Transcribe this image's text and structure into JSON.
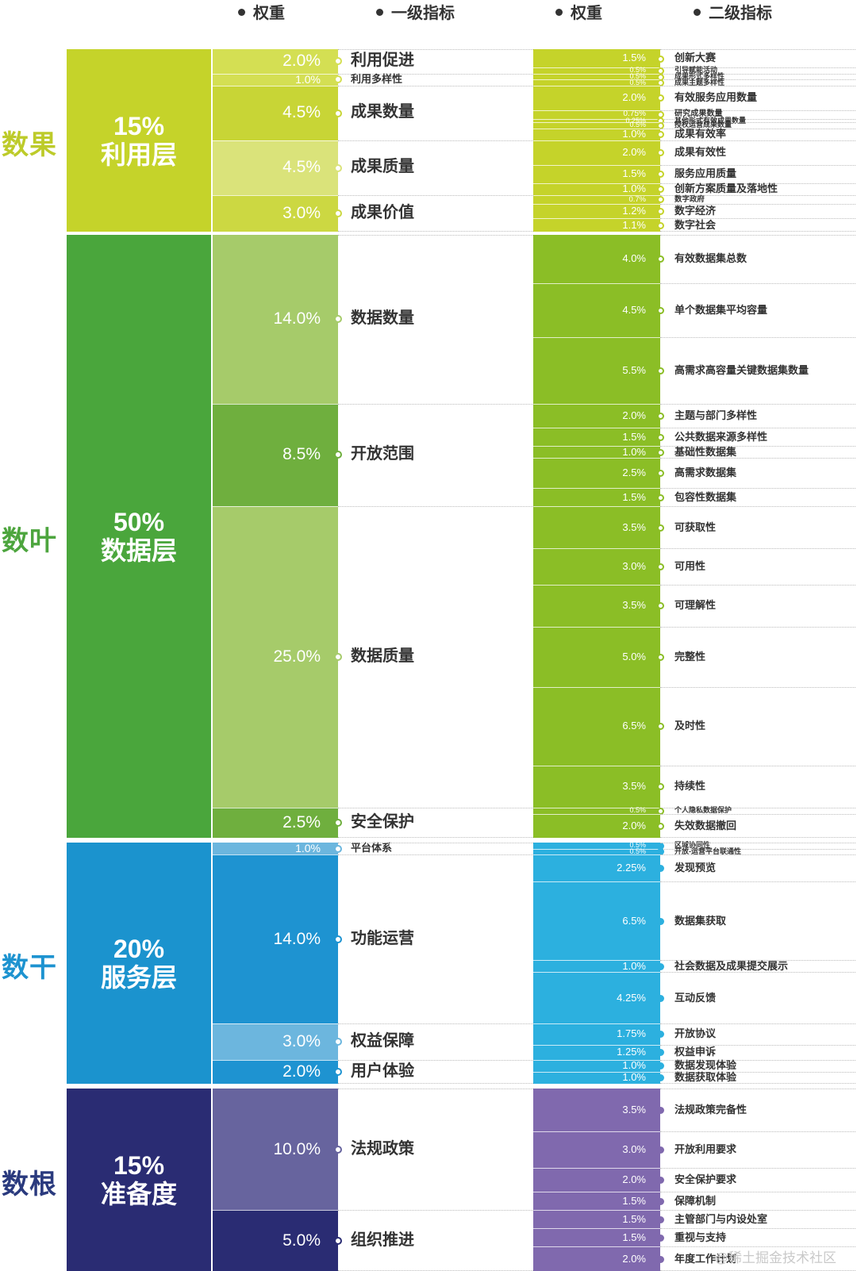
{
  "headers": {
    "weight": "权重",
    "level1": "一级指标",
    "level2": "二级指标"
  },
  "watermark": "@稀土掘金技术社区",
  "layers": [
    {
      "side": "数果",
      "pct": "15%",
      "name": "利用层",
      "color": "#C5D32A",
      "sideColor": "#BDCB2A",
      "l1": [
        {
          "label": "利用促进",
          "weight": "2.0%",
          "shade": "#D4DF53",
          "l2": [
            {
              "label": "创新大赛",
              "weight": "1.5%"
            },
            {
              "label": "引导赋能活动",
              "weight": "0.5%"
            }
          ]
        },
        {
          "label": "利用多样性",
          "weight": "1.0%",
          "shade": "#D4DF53",
          "l2": [
            {
              "label": "成果形式多样性",
              "weight": "0.5%"
            },
            {
              "label": "成果主题多样性",
              "weight": "0.5%"
            }
          ]
        },
        {
          "label": "成果数量",
          "weight": "4.5%",
          "shade": "#C8D536",
          "l2": [
            {
              "label": "有效服务应用数量",
              "weight": "2.0%"
            },
            {
              "label": "研究成果数量",
              "weight": "0.75%"
            },
            {
              "label": "其他形式有效成果数量",
              "weight": "0.25%"
            },
            {
              "label": "授权运营成果数量",
              "weight": "0.5%"
            },
            {
              "label": "成果有效率",
              "weight": "1.0%"
            }
          ]
        },
        {
          "label": "成果质量",
          "weight": "4.5%",
          "shade": "#DAE37A",
          "l2": [
            {
              "label": "成果有效性",
              "weight": "2.0%"
            },
            {
              "label": "服务应用质量",
              "weight": "1.5%"
            },
            {
              "label": "创新方案质量及落地性",
              "weight": "1.0%"
            }
          ]
        },
        {
          "label": "成果价值",
          "weight": "3.0%",
          "shade": "#CCD842",
          "l2": [
            {
              "label": "数字政府",
              "weight": "0.7%"
            },
            {
              "label": "数字经济",
              "weight": "1.2%"
            },
            {
              "label": "数字社会",
              "weight": "1.1%"
            }
          ]
        }
      ]
    },
    {
      "side": "数叶",
      "pct": "50%",
      "name": "数据层",
      "color": "#4AA63C",
      "sideColor": "#4DA53E",
      "l1": [
        {
          "label": "数据数量",
          "weight": "14.0%",
          "shade": "#A6CB6A",
          "l2": [
            {
              "label": "有效数据集总数",
              "weight": "4.0%"
            },
            {
              "label": "单个数据集平均容量",
              "weight": "4.5%"
            },
            {
              "label": "高需求高容量关键数据集数量",
              "weight": "5.5%"
            }
          ]
        },
        {
          "label": "开放范围",
          "weight": "8.5%",
          "shade": "#6FAF3E",
          "l2": [
            {
              "label": "主题与部门多样性",
              "weight": "2.0%"
            },
            {
              "label": "公共数据来源多样性",
              "weight": "1.5%"
            },
            {
              "label": "基础性数据集",
              "weight": "1.0%"
            },
            {
              "label": "高需求数据集",
              "weight": "2.5%"
            },
            {
              "label": "包容性数据集",
              "weight": "1.5%"
            }
          ]
        },
        {
          "label": "数据质量",
          "weight": "25.0%",
          "shade": "#A6CB6A",
          "l2": [
            {
              "label": "可获取性",
              "weight": "3.5%"
            },
            {
              "label": "可用性",
              "weight": "3.0%"
            },
            {
              "label": "可理解性",
              "weight": "3.5%"
            },
            {
              "label": "完整性",
              "weight": "5.0%"
            },
            {
              "label": "及时性",
              "weight": "6.5%"
            },
            {
              "label": "持续性",
              "weight": "3.5%"
            }
          ]
        },
        {
          "label": "安全保护",
          "weight": "2.5%",
          "shade": "#6FAF3E",
          "l2": [
            {
              "label": "个人隐私数据保护",
              "weight": "0.5%"
            },
            {
              "label": "失效数据撤回",
              "weight": "2.0%"
            }
          ]
        }
      ]
    },
    {
      "side": "数干",
      "pct": "20%",
      "name": "服务层",
      "color": "#1B93CE",
      "sideColor": "#1D93D0",
      "l1": [
        {
          "label": "平台体系",
          "weight": "1.0%",
          "shade": "#6CB6DE",
          "l2": [
            {
              "label": "区域协同性",
              "weight": "0.5%"
            },
            {
              "label": "开放-运营平台联通性",
              "weight": "0.5%"
            }
          ]
        },
        {
          "label": "功能运营",
          "weight": "14.0%",
          "shade": "#1E93D1",
          "l2": [
            {
              "label": "发现预览",
              "weight": "2.25%"
            },
            {
              "label": "数据集获取",
              "weight": "6.5%"
            },
            {
              "label": "社会数据及成果提交展示",
              "weight": "1.0%"
            },
            {
              "label": "互动反馈",
              "weight": "4.25%"
            }
          ]
        },
        {
          "label": "权益保障",
          "weight": "3.0%",
          "shade": "#6CB6DE",
          "l2": [
            {
              "label": "开放协议",
              "weight": "1.75%"
            },
            {
              "label": "权益申诉",
              "weight": "1.25%"
            }
          ]
        },
        {
          "label": "用户体验",
          "weight": "2.0%",
          "shade": "#1E93D1",
          "l2": [
            {
              "label": "数据发现体验",
              "weight": "1.0%"
            },
            {
              "label": "数据获取体验",
              "weight": "1.0%"
            }
          ]
        }
      ]
    },
    {
      "side": "数根",
      "pct": "15%",
      "name": "准备度",
      "color": "#2A2C73",
      "sideColor": "#2A3A7E",
      "l1": [
        {
          "label": "法规政策",
          "weight": "10.0%",
          "shade": "#67649E",
          "l2": [
            {
              "label": "法规政策完备性",
              "weight": "3.5%"
            },
            {
              "label": "开放利用要求",
              "weight": "3.0%"
            },
            {
              "label": "安全保护要求",
              "weight": "2.0%"
            },
            {
              "label": "保障机制",
              "weight": "1.5%"
            }
          ]
        },
        {
          "label": "组织推进",
          "weight": "5.0%",
          "shade": "#2A2C73",
          "l2": [
            {
              "label": "主管部门与内设处室",
              "weight": "1.5%"
            },
            {
              "label": "重视与支持",
              "weight": "1.5%"
            },
            {
              "label": "年度工作计划",
              "weight": "2.0%"
            }
          ]
        }
      ]
    }
  ],
  "colors": {
    "l2_fill": [
      "#C5D32A",
      "#8BBE26",
      "#2CB0DF",
      "#8069AE"
    ]
  }
}
